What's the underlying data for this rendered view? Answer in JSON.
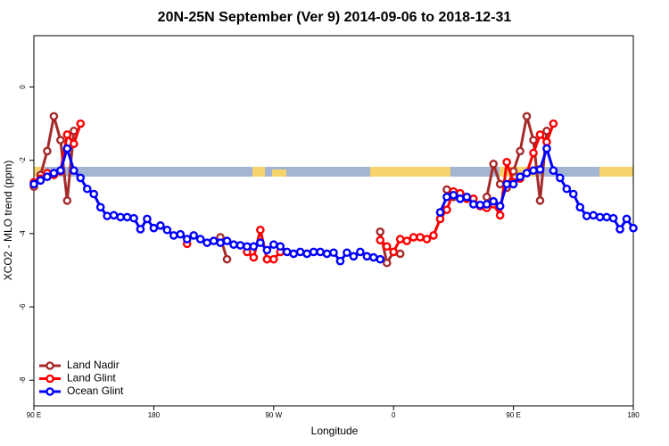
{
  "chart_data": {
    "type": "line",
    "title": "20N-25N September (Ver 9)   2014-09-06 to 2018-12-31",
    "x_label": "Longitude",
    "y_label": "XCO2 - MLO trend (ppm)",
    "x": [
      90,
      95,
      100,
      105,
      110,
      115,
      120,
      125,
      130,
      135,
      140,
      145,
      150,
      155,
      160,
      165,
      170,
      175,
      180,
      185,
      190,
      195,
      200,
      205,
      210,
      215,
      220,
      225,
      230,
      235,
      240,
      245,
      250,
      255,
      260,
      265,
      270,
      275,
      280,
      285,
      290,
      295,
      300,
      305,
      310,
      315,
      320,
      325,
      330,
      335,
      340,
      345,
      350,
      355,
      360,
      365,
      370,
      375,
      380,
      385,
      390,
      395,
      400,
      405,
      410,
      415,
      420,
      425,
      430,
      435,
      440,
      445,
      450,
      455,
      460,
      465,
      470,
      475,
      480,
      485,
      490,
      495,
      500,
      505,
      510,
      515,
      520,
      525,
      530,
      535,
      540
    ],
    "xlim": [
      90,
      540
    ],
    "xticks": [
      {
        "value": 90,
        "label": "90 E"
      },
      180,
      {
        "value": 270,
        "label": "90 W"
      },
      {
        "value": 360,
        "label": "0"
      },
      {
        "value": 450,
        "label": "90 E"
      },
      {
        "value": 540,
        "label": "180"
      }
    ],
    "ylim": [
      -8.7,
      1.4
    ],
    "yticks": [
      0,
      -2,
      -4,
      -6,
      -8
    ],
    "legend": "bottom-left",
    "series": [
      {
        "name": "Land Nadir",
        "color": "#a52a2a",
        "values": [
          -2.72,
          -2.4,
          -1.75,
          -0.8,
          -1.45,
          -3.1,
          -1.2,
          null,
          null,
          null,
          null,
          null,
          null,
          null,
          null,
          null,
          null,
          null,
          null,
          null,
          null,
          null,
          null,
          null,
          null,
          null,
          null,
          null,
          -4.1,
          -4.7,
          null,
          null,
          null,
          null,
          null,
          null,
          null,
          null,
          null,
          null,
          null,
          null,
          null,
          null,
          null,
          null,
          null,
          null,
          null,
          null,
          null,
          null,
          -3.95,
          -4.8,
          -4.5,
          -4.55,
          null,
          null,
          null,
          null,
          null,
          null,
          -2.8,
          -3.0,
          -2.95,
          null,
          null,
          null,
          -3.0,
          -2.1,
          -2.65,
          -2.75,
          -2.3,
          -1.75,
          -0.8,
          -1.45,
          -3.1,
          -1.2,
          null,
          null,
          null,
          null,
          null,
          null,
          null,
          null,
          null,
          null,
          null,
          null,
          null
        ]
      },
      {
        "name": "Land Glint",
        "color": "#ff0000",
        "values": [
          -2.6,
          -2.5,
          -2.35,
          -2.4,
          -2.3,
          -1.3,
          -1.55,
          -1.0,
          null,
          null,
          null,
          null,
          null,
          null,
          null,
          null,
          null,
          null,
          null,
          null,
          null,
          null,
          null,
          -4.28,
          null,
          null,
          null,
          null,
          null,
          null,
          null,
          null,
          -4.5,
          -4.65,
          -3.9,
          -4.7,
          -4.7,
          -4.5,
          null,
          null,
          null,
          null,
          null,
          null,
          null,
          null,
          null,
          null,
          null,
          null,
          null,
          null,
          -4.18,
          -4.35,
          -4.5,
          -4.15,
          -4.2,
          -4.1,
          -4.1,
          -4.15,
          -4.05,
          -3.6,
          -3.35,
          -2.85,
          -2.9,
          -3.05,
          -3.05,
          -3.25,
          -3.3,
          -3.2,
          -3.5,
          -2.05,
          -2.6,
          -2.5,
          -2.35,
          -1.8,
          -1.3,
          -1.5,
          -1.0,
          null,
          null,
          null,
          null,
          null,
          null,
          null,
          null,
          null,
          null,
          null,
          null
        ]
      },
      {
        "name": "Ocean Glint",
        "color": "#0000ff",
        "values": [
          -2.65,
          -2.55,
          -2.45,
          -2.35,
          -2.28,
          -1.68,
          -2.28,
          -2.48,
          -2.78,
          -2.92,
          -3.28,
          -3.52,
          -3.5,
          -3.55,
          -3.55,
          -3.58,
          -3.88,
          -3.6,
          -3.85,
          -3.78,
          -3.9,
          -4.05,
          -4.02,
          -4.15,
          -4.05,
          -4.15,
          -4.25,
          -4.2,
          -4.25,
          -4.2,
          -4.3,
          -4.32,
          -4.35,
          -4.35,
          -4.25,
          -4.45,
          -4.3,
          -4.35,
          -4.5,
          -4.55,
          -4.5,
          -4.55,
          -4.5,
          -4.5,
          -4.55,
          -4.52,
          -4.75,
          -4.52,
          -4.62,
          -4.5,
          -4.62,
          -4.65,
          -4.7,
          null,
          null,
          null,
          null,
          null,
          null,
          null,
          null,
          -3.42,
          -3.0,
          -2.95,
          -3.05,
          -3.0,
          -3.2,
          -3.22,
          -3.2,
          -3.12,
          -3.25,
          -2.65,
          -2.65,
          -2.45,
          -2.35,
          -2.28,
          -2.25,
          -1.68,
          -2.28,
          -2.48,
          -2.78,
          -2.92,
          -3.28,
          -3.52,
          -3.5,
          -3.55,
          -3.55,
          -3.58,
          -3.88,
          -3.6,
          -3.85
        ]
      }
    ]
  }
}
